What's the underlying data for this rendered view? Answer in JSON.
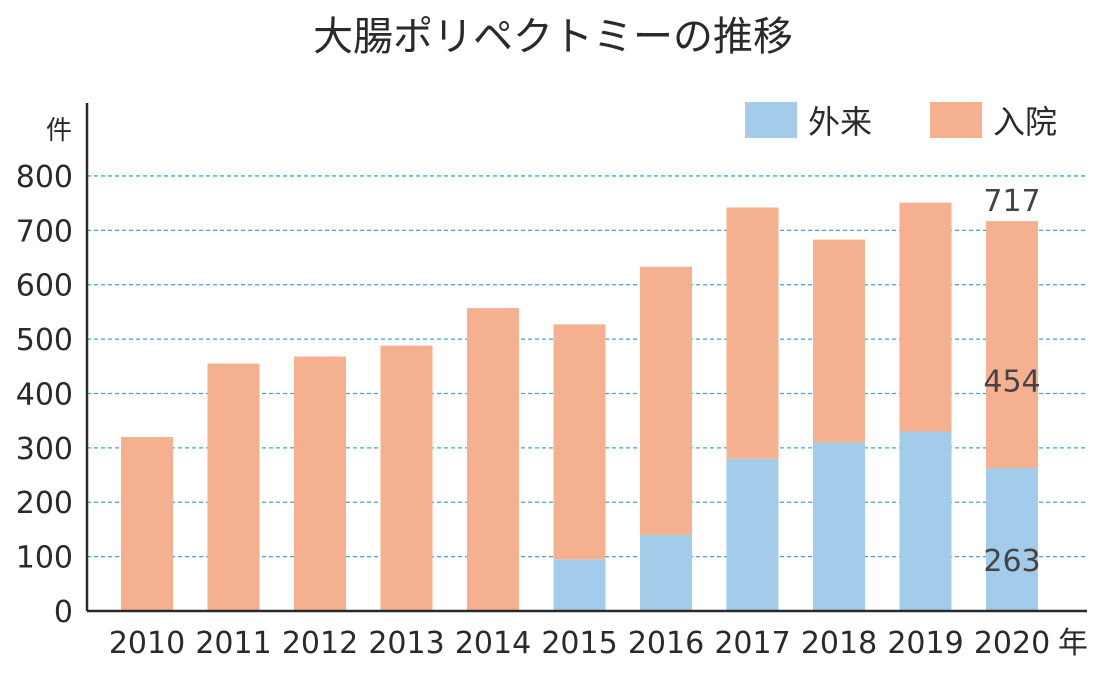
{
  "chart_data": {
    "type": "bar",
    "stacked": true,
    "title": "大腸ポリペクトミーの推移",
    "ylabel": "件",
    "xlabel": "年",
    "ylim": [
      0,
      800
    ],
    "yticks": [
      0,
      100,
      200,
      300,
      400,
      500,
      600,
      700,
      800
    ],
    "grid": true,
    "legend_position": "top-right",
    "categories": [
      "2010",
      "2011",
      "2012",
      "2013",
      "2014",
      "2015",
      "2016",
      "2017",
      "2018",
      "2019",
      "2020"
    ],
    "series": [
      {
        "name": "外来",
        "color": "#a3cbea",
        "values": [
          0,
          0,
          0,
          0,
          0,
          95,
          140,
          280,
          310,
          330,
          263
        ]
      },
      {
        "name": "入院",
        "color": "#f4b08f",
        "values": [
          320,
          455,
          468,
          488,
          557,
          432,
          493,
          462,
          373,
          421,
          454
        ]
      }
    ],
    "annotations": [
      {
        "category": "2020",
        "series": "外来",
        "text": "263"
      },
      {
        "category": "2020",
        "series": "入院",
        "text": "454"
      },
      {
        "category": "2020",
        "series": "total",
        "text": "717"
      }
    ]
  },
  "colors": {
    "grid": "#3aa8d8",
    "axis": "#2a2a2a"
  }
}
